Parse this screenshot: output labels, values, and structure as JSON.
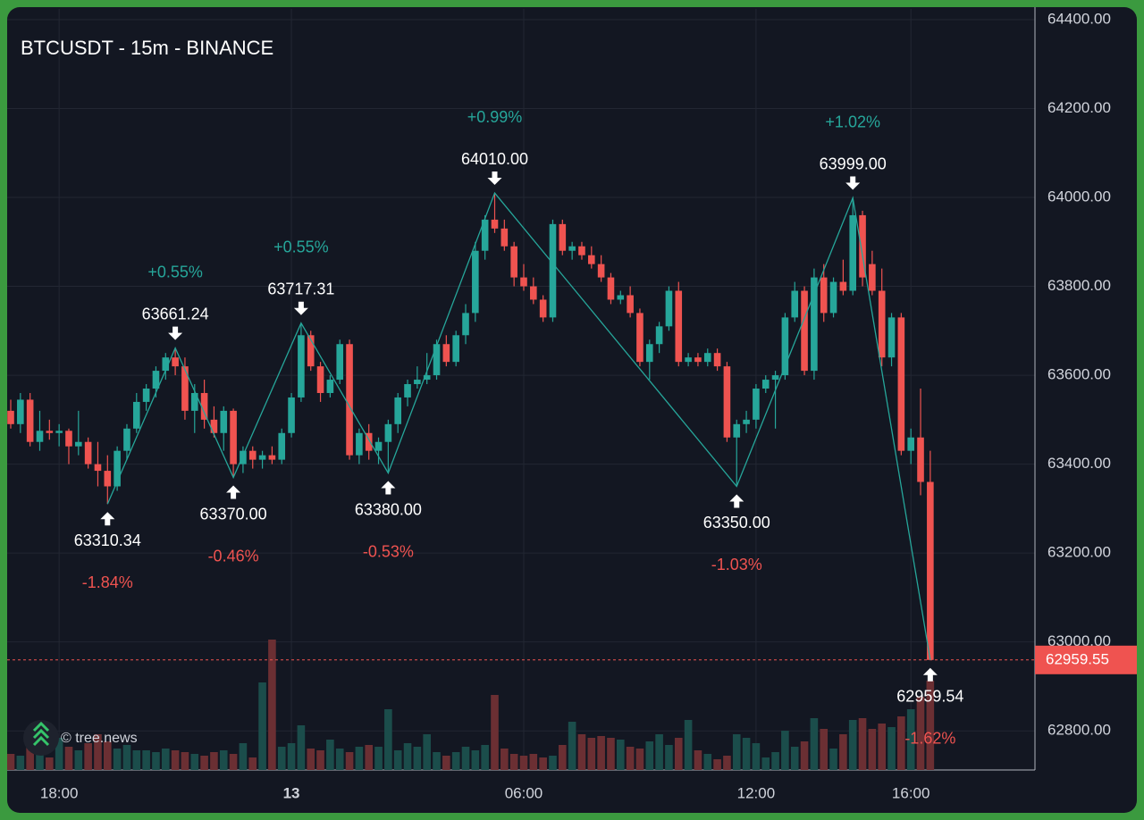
{
  "chart_data": {
    "type": "candlestick",
    "title": "BTCUSDT - 15m - BINANCE",
    "watermark": "© tree.news",
    "categories": [
      null,
      null,
      null,
      null,
      null,
      "18:00",
      null,
      null,
      null,
      null,
      null,
      null,
      null,
      null,
      null,
      null,
      null,
      null,
      null,
      null,
      null,
      null,
      null,
      null,
      null,
      null,
      null,
      null,
      null,
      "13",
      null,
      null,
      null,
      null,
      null,
      null,
      null,
      null,
      null,
      null,
      null,
      null,
      null,
      null,
      null,
      null,
      null,
      null,
      null,
      null,
      null,
      null,
      null,
      "06:00",
      null,
      null,
      null,
      null,
      null,
      null,
      null,
      null,
      null,
      null,
      null,
      null,
      null,
      null,
      null,
      null,
      null,
      null,
      null,
      null,
      null,
      null,
      null,
      "12:00",
      null,
      null,
      null,
      null,
      null,
      null,
      null,
      null,
      null,
      null,
      null,
      null,
      null,
      null,
      null,
      "16:00",
      null,
      null
    ],
    "bold_categories": [
      "13"
    ],
    "open": [
      63520,
      63490,
      63545,
      63450,
      63475,
      63470,
      63475,
      63440,
      63450,
      63400,
      63385,
      63350,
      63430,
      63480,
      63540,
      63570,
      63610,
      63640,
      63620,
      63520,
      63560,
      63500,
      63470,
      63520,
      63400,
      63430,
      63410,
      63420,
      63410,
      63470,
      63550,
      63690,
      63620,
      63560,
      63590,
      63670,
      63420,
      63470,
      63430,
      63450,
      63490,
      63550,
      63580,
      63590,
      63600,
      63670,
      63630,
      63690,
      63740,
      63880,
      63950,
      63930,
      63890,
      63820,
      63800,
      63770,
      63730,
      63940,
      63880,
      63890,
      63870,
      63850,
      63820,
      63770,
      63780,
      63740,
      63630,
      63670,
      63710,
      63790,
      63630,
      63640,
      63630,
      63650,
      63620,
      63460,
      63490,
      63500,
      63570,
      63590,
      63600,
      63730,
      63790,
      63610,
      63820,
      63740,
      63810,
      63790,
      63960,
      63850,
      63790,
      63640,
      63730,
      63430,
      63460,
      63360
    ],
    "high": [
      63545,
      63560,
      63560,
      63520,
      63500,
      63490,
      63480,
      63520,
      63460,
      63450,
      63420,
      63440,
      63490,
      63560,
      63580,
      63620,
      63650,
      63661.24,
      63640,
      63580,
      63590,
      63530,
      63530,
      63525,
      63440,
      63440,
      63430,
      63440,
      63480,
      63560,
      63717.31,
      63700,
      63630,
      63600,
      63680,
      63680,
      63480,
      63490,
      63460,
      63500,
      63560,
      63590,
      63620,
      63650,
      63680,
      63690,
      63700,
      63760,
      63900,
      63960,
      64010,
      63950,
      63900,
      63850,
      63820,
      63780,
      63950,
      63950,
      63900,
      63900,
      63890,
      63870,
      63830,
      63790,
      63800,
      63750,
      63680,
      63720,
      63800,
      63810,
      63650,
      63650,
      63660,
      63660,
      63630,
      63500,
      63520,
      63580,
      63600,
      63610,
      63740,
      63810,
      63800,
      63840,
      63850,
      63820,
      63860,
      63999,
      63970,
      63880,
      63840,
      63740,
      63740,
      63480,
      63570,
      63430
    ],
    "low": [
      63480,
      63470,
      63440,
      63430,
      63455,
      63440,
      63400,
      63420,
      63390,
      63350,
      63310.34,
      63340,
      63410,
      63470,
      63520,
      63550,
      63590,
      63600,
      63500,
      63470,
      63480,
      63460,
      63430,
      63370,
      63380,
      63390,
      63390,
      63400,
      63400,
      63460,
      63540,
      63610,
      63540,
      63550,
      63580,
      63410,
      63400,
      63410,
      63400,
      63380,
      63470,
      63530,
      63570,
      63580,
      63590,
      63620,
      63620,
      63670,
      63720,
      63860,
      63920,
      63880,
      63800,
      63790,
      63760,
      63720,
      63720,
      63870,
      63860,
      63860,
      63840,
      63810,
      63760,
      63760,
      63730,
      63620,
      63590,
      63650,
      63700,
      63620,
      63620,
      63620,
      63620,
      63610,
      63450,
      63350,
      63470,
      63480,
      63560,
      63480,
      63590,
      63720,
      63600,
      63590,
      63720,
      63730,
      63780,
      63780,
      63800,
      63780,
      63620,
      63620,
      63420,
      63400,
      63330,
      62959.54
    ],
    "close": [
      63490,
      63545,
      63450,
      63475,
      63470,
      63475,
      63440,
      63450,
      63400,
      63385,
      63350,
      63430,
      63480,
      63540,
      63570,
      63610,
      63640,
      63620,
      63520,
      63560,
      63500,
      63470,
      63520,
      63400,
      63430,
      63410,
      63420,
      63410,
      63470,
      63550,
      63690,
      63620,
      63560,
      63590,
      63670,
      63420,
      63470,
      63430,
      63450,
      63490,
      63550,
      63580,
      63590,
      63600,
      63670,
      63630,
      63690,
      63740,
      63880,
      63950,
      63930,
      63890,
      63820,
      63800,
      63770,
      63730,
      63940,
      63880,
      63890,
      63870,
      63850,
      63820,
      63770,
      63780,
      63740,
      63630,
      63670,
      63710,
      63790,
      63630,
      63640,
      63630,
      63650,
      63620,
      63460,
      63490,
      63500,
      63570,
      63590,
      63600,
      63730,
      63790,
      63610,
      63820,
      63740,
      63810,
      63790,
      63960,
      63820,
      63790,
      63640,
      63730,
      63430,
      63460,
      63360,
      62959.55
    ],
    "volume": [
      18,
      16,
      30,
      18,
      14,
      36,
      26,
      22,
      30,
      40,
      32,
      24,
      28,
      22,
      22,
      20,
      24,
      22,
      20,
      18,
      16,
      20,
      22,
      18,
      30,
      14,
      98,
      146,
      26,
      30,
      50,
      24,
      22,
      34,
      24,
      20,
      26,
      28,
      26,
      68,
      22,
      30,
      26,
      40,
      20,
      16,
      20,
      26,
      22,
      28,
      84,
      24,
      18,
      16,
      18,
      14,
      16,
      28,
      54,
      40,
      36,
      38,
      36,
      34,
      26,
      24,
      32,
      40,
      28,
      36,
      56,
      22,
      18,
      12,
      16,
      40,
      36,
      30,
      14,
      20,
      44,
      26,
      32,
      58,
      46,
      24,
      40,
      56,
      58,
      46,
      52,
      48,
      60,
      68,
      82,
      100
    ],
    "volume_ylim": [
      0,
      150
    ],
    "up_color": "#26a69a",
    "down_color": "#ef5350",
    "volume_up_color": "#1b4d4b",
    "volume_down_color": "#6b2f33",
    "zigzag_color": "#26a69a",
    "ylim": [
      62712,
      64424
    ],
    "yticks": [
      {
        "value": 62800,
        "label": "62800.00"
      },
      {
        "value": 63000,
        "label": "63000.00"
      },
      {
        "value": 63200,
        "label": "63200.00"
      },
      {
        "value": 63400,
        "label": "63400.00"
      },
      {
        "value": 63600,
        "label": "63600.00"
      },
      {
        "value": 63800,
        "label": "63800.00"
      },
      {
        "value": 64000,
        "label": "64000.00"
      },
      {
        "value": 64200,
        "label": "64200.00"
      },
      {
        "value": 64400,
        "label": "64400.00"
      }
    ],
    "grid": true,
    "last_price": {
      "value": 62959.55,
      "label": "62959.55"
    },
    "pivots": [
      {
        "index": 10,
        "kind": "low",
        "price": 63310.34,
        "change": {
          "value": -1.84,
          "label": "-1.84%"
        }
      },
      {
        "index": 17,
        "kind": "high",
        "price": 63661.24,
        "change": {
          "value": 0.55,
          "label": "+0.55%"
        }
      },
      {
        "index": 23,
        "kind": "low",
        "price": {
          "value": 63370,
          "label": "63370.00"
        },
        "change": {
          "value": -0.46,
          "label": "-0.46%"
        }
      },
      {
        "index": 30,
        "kind": "high",
        "price": 63717.31,
        "change": {
          "value": 0.55,
          "label": "+0.55%"
        }
      },
      {
        "index": 39,
        "kind": "low",
        "price": {
          "value": 63380,
          "label": "63380.00"
        },
        "change": {
          "value": -0.53,
          "label": "-0.53%"
        }
      },
      {
        "index": 50,
        "kind": "high",
        "price": {
          "value": 64010,
          "label": "64010.00"
        },
        "change": {
          "value": 0.99,
          "label": "+0.99%"
        }
      },
      {
        "index": 75,
        "kind": "low",
        "price": {
          "value": 63350,
          "label": "63350.00"
        },
        "change": {
          "value": -1.03,
          "label": "-1.03%"
        }
      },
      {
        "index": 87,
        "kind": "high",
        "price": {
          "value": 63999,
          "label": "63999.00"
        },
        "change": {
          "value": 1.02,
          "label": "+1.02%"
        }
      },
      {
        "index": 95,
        "kind": "low",
        "price": 62959.54,
        "change": {
          "value": -1.62,
          "label": "-1.62%"
        }
      }
    ]
  }
}
